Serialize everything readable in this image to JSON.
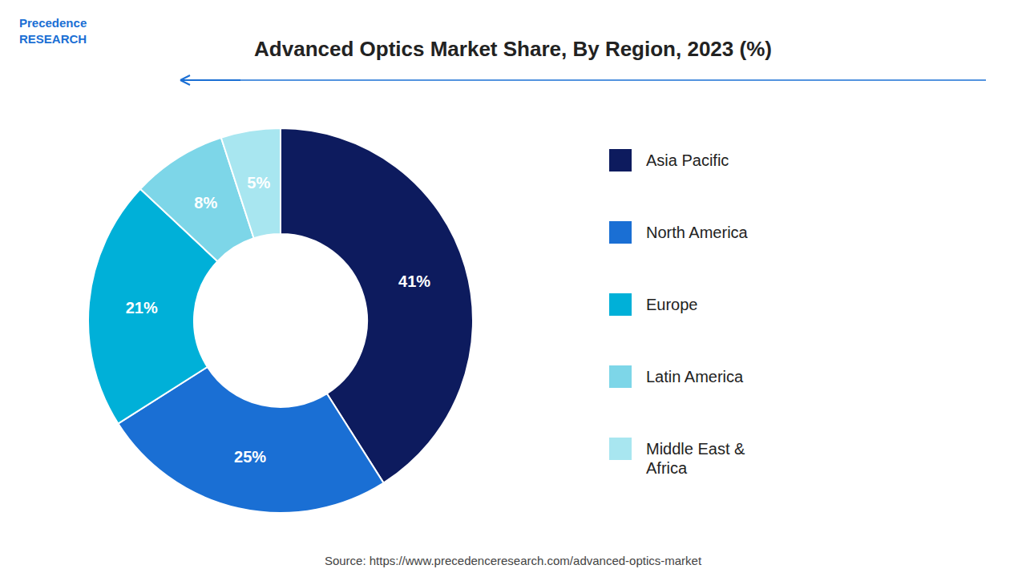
{
  "chart_data": {
    "type": "donut",
    "title": "Advanced Optics Market Share, By Region, 2023 (%)",
    "source": "Source: https://www.precedenceresearch.com/advanced-optics-market",
    "annotations": [
      "Precedence\nRESEARCH"
    ],
    "categories": [
      "Asia Pacific",
      "North America",
      "Europe",
      "Latin America",
      "Middle East &\nAfrica"
    ],
    "values": [
      41,
      25,
      21,
      8,
      5
    ],
    "value_labels": [
      "41%",
      "25%",
      "21%",
      "8%",
      "5%"
    ],
    "colors": [
      "#0d1b5e",
      "#1a6fd4",
      "#00b0d8",
      "#7dd6e8",
      "#a8e6f0"
    ],
    "data_labels": true,
    "legend": "right"
  }
}
